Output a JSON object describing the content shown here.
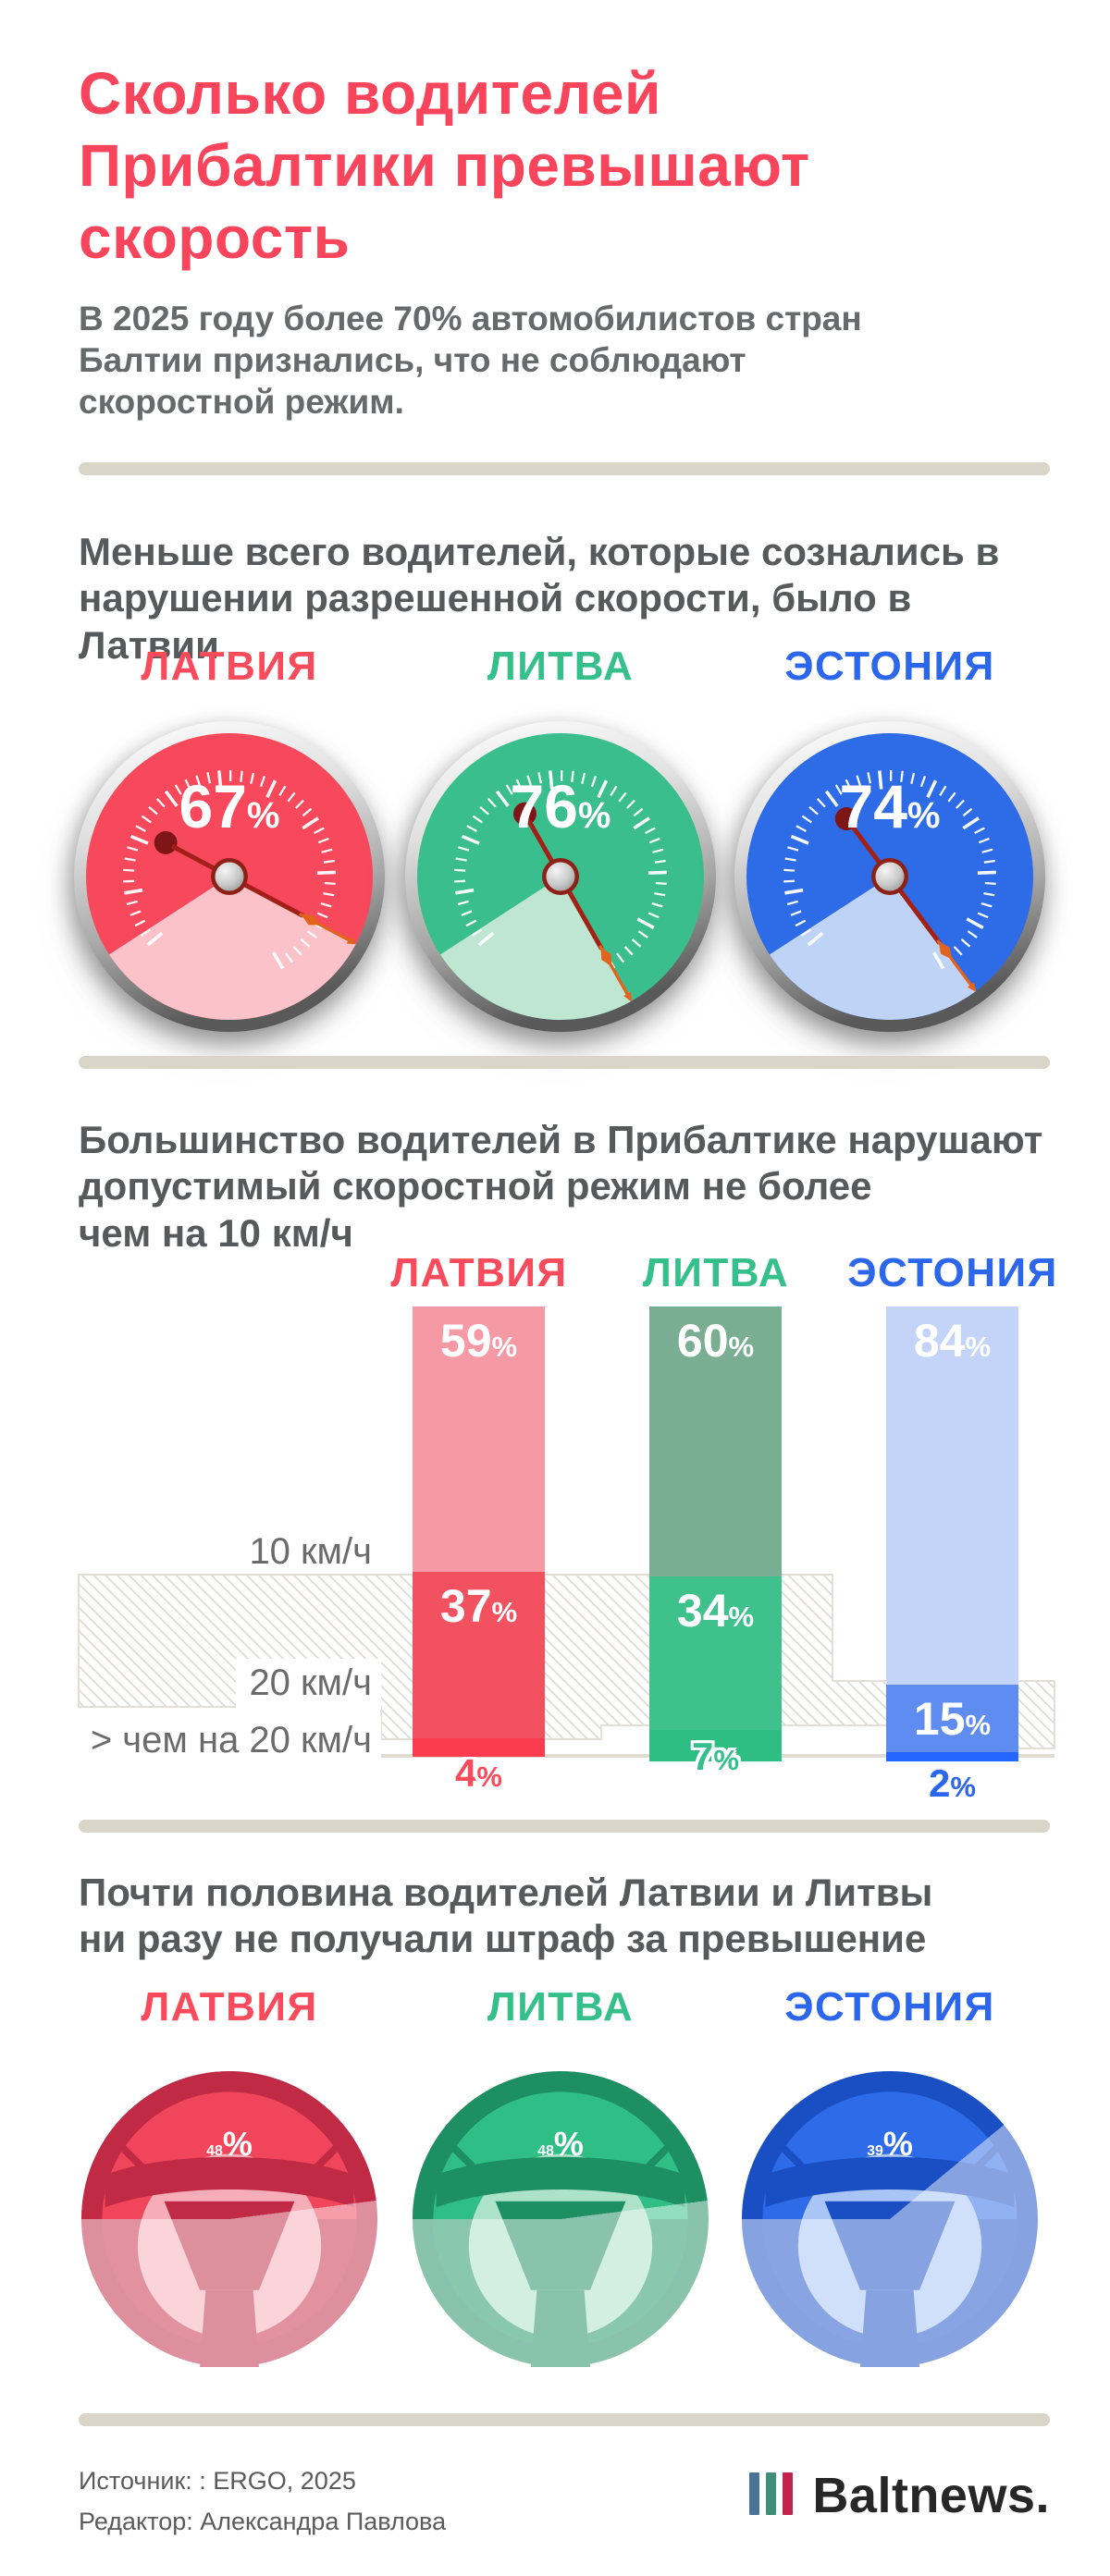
{
  "header": {
    "title": "Сколько водителей\nПрибалтики превышают\nскорость",
    "title_color": "#f8455c",
    "subtitle": "В 2025 году более 70% автомобилистов стран\nБалтии признались, что не соблюдают\nскоростной режим."
  },
  "countries": [
    {
      "name": "ЛАТВИЯ",
      "label_color": "#f94b5c",
      "gauge": {
        "face": "#f8495c",
        "pale": "#fbc2c9"
      },
      "bar_colors": [
        "#f59aa5",
        "#f25160",
        "#fa3b50"
      ],
      "wheel": {
        "rim": "#c02a45",
        "face": "#f0455b",
        "pale": "#f6adb8"
      }
    },
    {
      "name": "ЛИТВА",
      "label_color": "#35c08b",
      "gauge": {
        "face": "#3bbe8d",
        "pale": "#bfe6d2"
      },
      "bar_colors": [
        "#79ae93",
        "#3fc18c",
        "#2ebe84"
      ],
      "wheel": {
        "rim": "#1e8e63",
        "face": "#2fbe86",
        "pale": "#abe2c8"
      }
    },
    {
      "name": "ЭСТОНИЯ",
      "label_color": "#2c66ec",
      "gauge": {
        "face": "#2e6be6",
        "pale": "#bfd3f7"
      },
      "bar_colors": [
        "#c3d4f8",
        "#5e8cf0",
        "#2566fe"
      ],
      "wheel": {
        "rim": "#1a4fc4",
        "face": "#2e6be8",
        "pale": "#a9c4f6"
      }
    }
  ],
  "sections": {
    "gauges": {
      "heading": "Меньше всего водителей, которые сознались в\nнарушении разрешенной скорости, было в Латвии"
    },
    "bars": {
      "heading": "Большинство водителей в Прибалтике нарушают\nдопустимый скоростной режим не более\nчем на 10 км/ч",
      "row_labels": [
        "10 км/ч",
        "20 км/ч",
        "> чем на 20 км/ч"
      ]
    },
    "wheels": {
      "heading": "Почти половина водителей Латвии и Литвы\nни разу не получали штраф за превышение"
    }
  },
  "footer": {
    "source": "Источник: : ERGO, 2025",
    "editor": "Редактор: Александра Павлова",
    "logo": {
      "text": "Baltnews.",
      "bar_colors": [
        "#4a7396",
        "#3e8e78",
        "#c2234b"
      ]
    }
  },
  "chart_data": [
    {
      "type": "pie",
      "subtype": "gauge",
      "title": "Меньше всего водителей, которые сознались в нарушении разрешенной скорости, было в Латвии",
      "categories": [
        "ЛАТВИЯ",
        "ЛИТВА",
        "ЭСТОНИЯ"
      ],
      "values": [
        67,
        76,
        74
      ],
      "unit": "%"
    },
    {
      "type": "bar",
      "subtype": "stacked-100",
      "title": "Большинство водителей в Прибалтике нарушают допустимый скоростной режим не более чем на 10 км/ч",
      "categories": [
        "ЛАТВИЯ",
        "ЛИТВА",
        "ЭСТОНИЯ"
      ],
      "series": [
        {
          "name": "10 км/ч",
          "values": [
            59,
            60,
            84
          ]
        },
        {
          "name": "20 км/ч",
          "values": [
            37,
            34,
            15
          ]
        },
        {
          "name": "> чем на 20 км/ч",
          "values": [
            4,
            7,
            2
          ]
        }
      ],
      "unit": "%",
      "ylim": [
        0,
        100
      ],
      "legend_position": "none",
      "grid": false
    },
    {
      "type": "pie",
      "subtype": "steering-wheel",
      "title": "Почти половина водителей Латвии и Литвы ни разу не получали штраф за превышение",
      "categories": [
        "ЛАТВИЯ",
        "ЛИТВА",
        "ЭСТОНИЯ"
      ],
      "values": [
        48,
        48,
        39
      ],
      "unit": "%"
    }
  ]
}
